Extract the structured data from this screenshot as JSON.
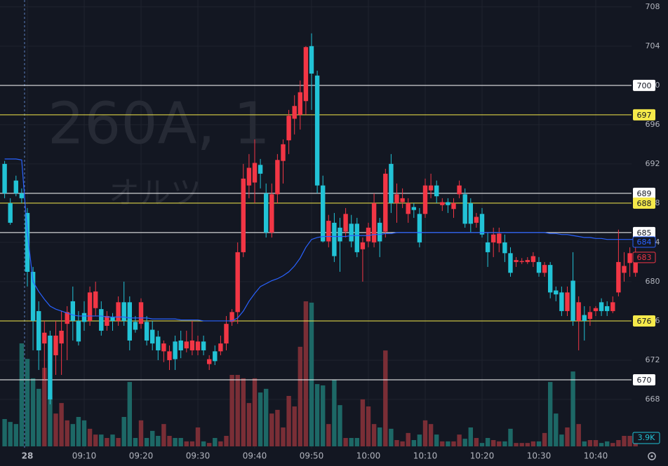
{
  "chart_data": {
    "type": "candlestick",
    "watermark": "260A, 1",
    "watermark_sub": "オルツ",
    "categories": [
      null,
      null,
      null,
      null,
      "28",
      null,
      null,
      null,
      null,
      null,
      null,
      null,
      null,
      null,
      "09:10",
      null,
      null,
      null,
      null,
      null,
      null,
      null,
      null,
      null,
      "09:20",
      null,
      null,
      null,
      null,
      null,
      null,
      null,
      null,
      null,
      "09:30",
      null,
      null,
      null,
      null,
      null,
      null,
      null,
      null,
      null,
      "09:40",
      null,
      null,
      null,
      null,
      null,
      null,
      null,
      null,
      null,
      "09:50",
      null,
      null,
      null,
      null,
      null,
      null,
      null,
      null,
      null,
      "10:00",
      null,
      null,
      null,
      null,
      null,
      null,
      null,
      null,
      null,
      "10:10",
      null,
      null,
      null,
      null,
      null,
      null,
      null,
      null,
      null,
      "10:20",
      null,
      null,
      null,
      null,
      null,
      null,
      null,
      null,
      null,
      "10:30",
      null,
      null,
      null,
      null,
      null,
      null,
      null,
      null,
      null,
      "10:40",
      null,
      null,
      null,
      null,
      null,
      null,
      null
    ],
    "open": [
      692,
      688,
      690.3,
      689,
      687,
      681,
      677,
      673.7,
      674.5,
      672.5,
      673.7,
      675.7,
      678,
      676,
      676.8,
      676,
      677.3,
      677.2,
      675.5,
      676.4,
      676,
      677.9,
      677.9,
      675.9,
      675.7,
      675.9,
      675.1,
      674.4,
      672.9,
      672,
      673.9,
      674,
      673.2,
      673,
      673,
      673.9,
      671.6,
      672.9,
      672.9,
      673.7,
      675.9,
      676.9,
      683,
      689.8,
      690.1,
      691.9,
      689,
      685,
      688.9,
      692.3,
      694.4,
      696.6,
      697,
      698.4,
      704,
      701,
      689.8,
      684.1,
      686,
      685.5,
      685.1,
      685.9,
      685.9,
      683.3,
      684.1,
      684,
      686,
      685.1,
      692,
      688,
      688.1,
      686.9,
      687.6,
      686.9,
      686.9,
      689.3,
      689.8,
      687.8,
      688.1,
      687.4,
      688.9,
      688.9,
      688,
      686,
      686.9,
      684,
      684,
      683.9,
      684,
      682.9,
      682,
      682,
      682,
      682,
      682,
      680.9,
      681.7,
      679.1,
      678.9,
      677,
      680.1,
      676,
      676.6,
      676.2,
      677,
      677.9,
      677.5,
      677,
      678.9,
      680.9,
      681.9,
      680.9
    ],
    "high": [
      692.3,
      688.5,
      690.8,
      689.5,
      687.5,
      681.5,
      678,
      676,
      675,
      676,
      677,
      677.5,
      679.5,
      677,
      678,
      679.5,
      680,
      678,
      677,
      676.8,
      678.5,
      680,
      678.5,
      676.5,
      678.3,
      676.5,
      676,
      675,
      674,
      673.5,
      674.5,
      675,
      675,
      676,
      674.5,
      674.5,
      672.5,
      673.5,
      674.5,
      676.5,
      677.2,
      684,
      692,
      693,
      694.5,
      692.5,
      690,
      690,
      693,
      694.5,
      697.5,
      699,
      700.5,
      704,
      705.3,
      701.5,
      690.8,
      686.8,
      687,
      686.5,
      687.5,
      686.8,
      686.5,
      684.5,
      686,
      689,
      686.5,
      691.5,
      693,
      690,
      689.5,
      688.5,
      688,
      687.5,
      690.5,
      691,
      690.3,
      688.5,
      688.5,
      688.5,
      690.3,
      689.5,
      688.5,
      687,
      687.5,
      685,
      685.5,
      685.5,
      684.8,
      683.5,
      682.5,
      682.4,
      682.5,
      683,
      682.5,
      682,
      682,
      679.5,
      679.5,
      679.5,
      683,
      678.5,
      677.5,
      677.5,
      677.5,
      678.3,
      678,
      678.5,
      685.3,
      683,
      683.5,
      683.5
    ],
    "low": [
      688.5,
      685.8,
      688.7,
      688,
      679.5,
      673,
      671,
      670,
      667.5,
      670.5,
      670.5,
      672,
      674,
      673.5,
      675,
      675.5,
      676.5,
      674.5,
      675,
      675,
      675.5,
      675.5,
      673,
      674.8,
      675.2,
      673.5,
      673,
      672,
      671.8,
      671,
      671,
      672.2,
      672.8,
      672.5,
      672.5,
      672.5,
      671,
      671.5,
      672.5,
      673,
      675.5,
      675.7,
      682.5,
      688.5,
      688,
      689.5,
      684.5,
      684.5,
      688,
      690,
      693,
      695,
      695.5,
      697,
      697.5,
      689,
      684,
      683.5,
      682,
      681,
      684.5,
      683.5,
      682.5,
      680,
      683.5,
      683.5,
      682.5,
      684.5,
      687,
      686,
      687.5,
      686,
      686.5,
      683.5,
      686.5,
      688.5,
      688,
      687.2,
      687,
      686.5,
      688.5,
      685.5,
      685,
      685.5,
      684.5,
      681.5,
      682.5,
      683,
      682,
      680.5,
      681.5,
      681.8,
      681.8,
      681.5,
      680.5,
      680.5,
      678.3,
      678,
      676.5,
      676.5,
      675.5,
      673,
      674,
      675.5,
      676.5,
      676.5,
      676.5,
      676.8,
      678.5,
      680,
      680.5,
      680.5
    ],
    "close": [
      689,
      686,
      689,
      688.5,
      681,
      676,
      673,
      674.8,
      668,
      674.5,
      675,
      676.9,
      676,
      673.9,
      675.9,
      678.9,
      679,
      675,
      676.5,
      676,
      677.9,
      676,
      674,
      675.1,
      677.9,
      674,
      673.7,
      673,
      673.7,
      672.9,
      672.1,
      673,
      673.9,
      674,
      673.9,
      673,
      672.1,
      671.9,
      673.7,
      675.7,
      676.9,
      683,
      690.5,
      691.6,
      692.1,
      691,
      685,
      688.9,
      692.4,
      694,
      696.9,
      697.9,
      699.3,
      703.9,
      701.2,
      689.8,
      684.1,
      686.2,
      682.6,
      684.1,
      686.9,
      684.1,
      683,
      684,
      685.5,
      688,
      684.1,
      691,
      688,
      688.9,
      688.5,
      688,
      687.3,
      684,
      689.8,
      689.8,
      688.7,
      688.1,
      687.8,
      688,
      689.8,
      685.9,
      685.9,
      686.6,
      684.8,
      683,
      684.8,
      684.9,
      682.9,
      680.9,
      682.2,
      682.1,
      682.2,
      682.6,
      680.9,
      681.7,
      678.9,
      678.7,
      677,
      678.9,
      676,
      677.9,
      676,
      676.9,
      677.3,
      677,
      677,
      677.9,
      682,
      681.6,
      682.9,
      683
    ],
    "volume": [
      10.4,
      9.3,
      8.5,
      39.2,
      33.3,
      25.9,
      21.9,
      29.9,
      19.2,
      12.5,
      16.5,
      9.9,
      8.5,
      11.2,
      9.9,
      6.7,
      4.5,
      4.5,
      3.2,
      4.5,
      3.2,
      11.2,
      24.5,
      3.2,
      9.9,
      3.2,
      5.9,
      4,
      8.5,
      4,
      3.2,
      3.2,
      1.9,
      1.9,
      7.2,
      1.9,
      1.3,
      3.2,
      1.9,
      4,
      27.2,
      27.2,
      25.9,
      16.5,
      25.9,
      20.5,
      21.9,
      12.5,
      13.9,
      7.2,
      19.2,
      15.2,
      37.9,
      55.2,
      54.7,
      23.7,
      23.2,
      8.5,
      25.3,
      15.7,
      3.2,
      3.2,
      3.2,
      17.9,
      15.2,
      8.5,
      7.2,
      36.5,
      6.7,
      2.4,
      1.9,
      5.1,
      2.4,
      4.5,
      9.9,
      8.5,
      4.5,
      1.9,
      1.9,
      1.9,
      4.5,
      2.9,
      7.2,
      3.2,
      1.3,
      3.2,
      2.4,
      1.9,
      1.9,
      6.7,
      1.3,
      1.3,
      1.3,
      1.9,
      1.9,
      5.1,
      24.5,
      12.5,
      4.5,
      7.2,
      28.5,
      8.5,
      1.9,
      2.4,
      2.4,
      1.3,
      1.9,
      1.3,
      2.4,
      4,
      4,
      3.9
    ],
    "last_volume_label": "3.9K",
    "vwap": [
      692.5,
      692.5,
      692.5,
      692.4,
      685,
      680,
      679,
      678.2,
      677.5,
      677.2,
      677,
      676.8,
      676.6,
      676.5,
      676.5,
      676.5,
      676.5,
      676.5,
      676.4,
      676.4,
      676.4,
      676.4,
      676.3,
      676.3,
      676.3,
      676.3,
      676.2,
      676.2,
      676.2,
      676.2,
      676.2,
      676.1,
      676.1,
      676.1,
      676.1,
      676,
      676,
      676,
      676,
      676,
      676,
      676.3,
      677,
      678,
      678.8,
      679.5,
      679.8,
      680.1,
      680.3,
      680.6,
      681,
      681.6,
      682.4,
      683.5,
      684.3,
      684.5,
      684.6,
      684.6,
      684.6,
      684.6,
      684.6,
      684.7,
      684.7,
      684.7,
      684.7,
      684.8,
      684.8,
      684.9,
      684.9,
      685,
      685,
      685,
      685,
      685,
      685,
      685,
      685,
      685,
      685,
      685,
      685,
      685,
      685,
      685,
      685,
      685,
      685,
      685,
      685,
      685,
      685,
      685,
      685,
      685,
      685,
      685,
      684.9,
      684.9,
      684.8,
      684.8,
      684.7,
      684.6,
      684.5,
      684.5,
      684.4,
      684.4,
      684.3,
      684.3,
      684.3,
      684.3,
      684.3,
      684.3
    ],
    "up_color": "#f23645",
    "down_color": "#22c3d6",
    "volume_up_color": "#7a2e36",
    "volume_down_color": "#1d6866",
    "vwap_color": "#2962ff",
    "ylim": [
      663,
      708.7
    ],
    "yticks": [
      668,
      672,
      676,
      680,
      684,
      688,
      692,
      696,
      700,
      704,
      708
    ],
    "volume_ylim": [
      0,
      160
    ],
    "grid": true,
    "levels": [
      {
        "value": 700,
        "color": "#ffffff"
      },
      {
        "value": 697,
        "color": "#f5e94a"
      },
      {
        "value": 689,
        "color": "#ffffff"
      },
      {
        "value": 688,
        "color": "#f5e94a"
      },
      {
        "value": 685,
        "color": "#ffffff"
      },
      {
        "value": 676,
        "color": "#f5e94a"
      },
      {
        "value": 670,
        "color": "#ffffff"
      }
    ],
    "price_labels": [
      {
        "value": 684,
        "color": "#2962ff"
      },
      {
        "value": 683,
        "color": "#f23645"
      }
    ]
  }
}
